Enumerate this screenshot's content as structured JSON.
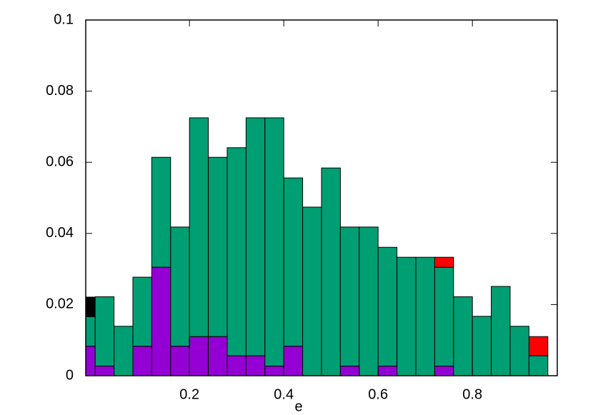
{
  "chart_data": {
    "type": "histogram",
    "x_label": "e",
    "bins": [
      -0.04,
      0,
      0.04,
      0.08,
      0.12,
      0.16,
      0.2,
      0.24,
      0.28,
      0.32,
      0.36,
      0.4,
      0.44,
      0.48,
      0.52,
      0.56,
      0.6,
      0.64,
      0.68,
      0.72,
      0.76,
      0.8,
      0.84,
      0.88,
      0.92,
      0.96
    ],
    "stacked": true,
    "series": [
      {
        "color": "#9400d3",
        "values": [
          0.0083,
          0.0027,
          0,
          0.0083,
          0.0305,
          0.0083,
          0.011,
          0.011,
          0.0056,
          0.0056,
          0.0027,
          0.0083,
          0,
          0,
          0.0027,
          0,
          0.0027,
          0,
          0,
          0.0027,
          0,
          0,
          0,
          0,
          0
        ]
      },
      {
        "color": "#009e73",
        "values": [
          0.0083,
          0.0195,
          0.0139,
          0.0194,
          0.0309,
          0.0335,
          0.0615,
          0.0504,
          0.0585,
          0.0669,
          0.0698,
          0.0473,
          0.0474,
          0.0584,
          0.0391,
          0.0418,
          0.0334,
          0.0333,
          0.0333,
          0.0278,
          0.0222,
          0.0167,
          0.0251,
          0.0139,
          0.0056
        ]
      },
      {
        "color": "#000000",
        "values": [
          0.0055,
          0,
          0,
          0,
          0,
          0,
          0,
          0,
          0,
          0,
          0,
          0,
          0,
          0,
          0,
          0,
          0,
          0,
          0,
          0,
          0,
          0,
          0,
          0,
          0
        ]
      },
      {
        "color": "#ff0000",
        "values": [
          0,
          0,
          0,
          0,
          0,
          0,
          0,
          0,
          0,
          0,
          0,
          0,
          0,
          0,
          0,
          0,
          0,
          0,
          0,
          0.0028,
          0,
          0,
          0,
          0,
          0.0054
        ]
      }
    ],
    "xlim": [
      -0.02,
      0.98
    ],
    "xticks": [
      0.2,
      0.4,
      0.6,
      0.8
    ],
    "ylim": [
      0,
      0.1
    ],
    "yticks": [
      0,
      0.02,
      0.04,
      0.06,
      0.08,
      0.1
    ]
  }
}
